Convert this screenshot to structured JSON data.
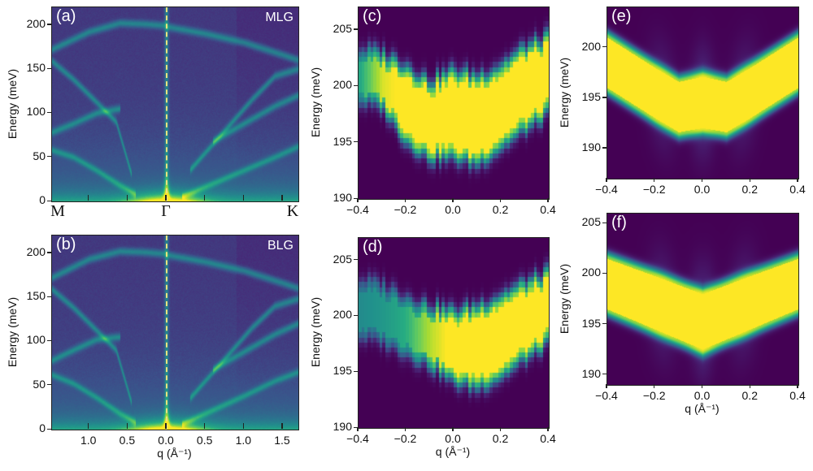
{
  "colors": {
    "colormap": "viridis",
    "dashed_line": "#e9e27f",
    "label_text": "#ffffff"
  },
  "chart_data": [
    {
      "id": "a",
      "type": "heatmap",
      "panel_label": "(a)",
      "sample": "MLG",
      "ylabel": "Energy (meV)",
      "xlabel": "",
      "xlim": [
        -1.48,
        1.7
      ],
      "ylim": [
        0,
        220
      ],
      "yticks": [
        0,
        50,
        100,
        150,
        200
      ],
      "xticks": [
        -1.0,
        -0.5,
        0.0,
        0.5,
        1.0,
        1.5
      ],
      "xtick_labels": [],
      "xsym_ticks": [
        -1.48,
        0.0,
        1.7
      ],
      "xsym_labels": [
        "M",
        "Γ",
        "K"
      ],
      "dashed_line_q": 0.0,
      "branches": [
        {
          "q": [
            -1.48,
            -1.0,
            -0.6,
            -0.3,
            0.0
          ],
          "E": [
            172,
            192,
            202,
            201,
            199
          ]
        },
        {
          "q": [
            0.0,
            0.5,
            1.0,
            1.5,
            1.7
          ],
          "E": [
            198,
            190,
            180,
            166,
            160
          ]
        },
        {
          "q": [
            -1.48,
            -1.2,
            -0.9,
            -0.65,
            -0.45
          ],
          "E": [
            159,
            138,
            112,
            90,
            30
          ]
        },
        {
          "q": [
            -1.48,
            -1.2,
            -0.9,
            -0.6
          ],
          "E": [
            78,
            88,
            100,
            105
          ]
        },
        {
          "q": [
            -1.48,
            -1.2,
            -0.9,
            -0.6,
            -0.4
          ],
          "E": [
            58,
            50,
            35,
            18,
            8
          ]
        },
        {
          "q": [
            0.2,
            0.6,
            1.0,
            1.4,
            1.7
          ],
          "E": [
            5,
            20,
            35,
            50,
            62
          ]
        },
        {
          "q": [
            0.3,
            0.7,
            1.1,
            1.4,
            1.7
          ],
          "E": [
            35,
            75,
            115,
            142,
            150
          ]
        },
        {
          "q": [
            0.6,
            1.0,
            1.4,
            1.7
          ],
          "E": [
            68,
            88,
            108,
            120
          ]
        }
      ]
    },
    {
      "id": "b",
      "type": "heatmap",
      "panel_label": "(b)",
      "sample": "BLG",
      "ylabel": "Energy (meV)",
      "xlabel": "q (Å⁻¹)",
      "xlim": [
        -1.48,
        1.7
      ],
      "ylim": [
        0,
        220
      ],
      "yticks": [
        0,
        50,
        100,
        150,
        200
      ],
      "xticks": [
        -1.0,
        -0.5,
        0.0,
        0.5,
        1.0,
        1.5
      ],
      "xtick_labels": [
        "1.0",
        "0.5",
        "0.0",
        "0.5",
        "1.0",
        "1.5"
      ],
      "dashed_line_q": 0.0,
      "branches": [
        {
          "q": [
            -1.48,
            -1.0,
            -0.6,
            -0.3,
            0.0
          ],
          "E": [
            172,
            193,
            202,
            201,
            199
          ]
        },
        {
          "q": [
            0.0,
            0.5,
            1.0,
            1.5,
            1.7
          ],
          "E": [
            198,
            190,
            180,
            166,
            160
          ]
        },
        {
          "q": [
            -1.48,
            -1.2,
            -0.9,
            -0.65,
            -0.45
          ],
          "E": [
            159,
            138,
            112,
            90,
            30
          ]
        },
        {
          "q": [
            -1.48,
            -1.2,
            -0.9,
            -0.6
          ],
          "E": [
            78,
            90,
            102,
            105
          ]
        },
        {
          "q": [
            -1.48,
            -1.2,
            -0.9,
            -0.6,
            -0.4
          ],
          "E": [
            62,
            52,
            36,
            18,
            8
          ]
        },
        {
          "q": [
            0.2,
            0.6,
            1.0,
            1.4,
            1.7
          ],
          "E": [
            6,
            22,
            38,
            55,
            65
          ]
        },
        {
          "q": [
            0.3,
            0.7,
            1.1,
            1.4,
            1.7
          ],
          "E": [
            35,
            75,
            115,
            140,
            148
          ]
        },
        {
          "q": [
            0.6,
            1.0,
            1.4,
            1.7
          ],
          "E": [
            68,
            88,
            108,
            120
          ]
        }
      ]
    },
    {
      "id": "c",
      "type": "heatmap",
      "panel_label": "(c)",
      "ylabel": "Energy (meV)",
      "xlabel": "",
      "xlim": [
        -0.4,
        0.4
      ],
      "ylim": [
        190,
        207
      ],
      "yticks": [
        190,
        195,
        200,
        205
      ],
      "xticks": [
        -0.4,
        -0.2,
        0.0,
        0.2,
        0.4
      ],
      "xtick_labels": [
        "−0.4",
        "−0.2",
        "0.0",
        "0.2",
        "0.4"
      ],
      "pixelated": true,
      "band": {
        "q": [
          -0.4,
          -0.3,
          -0.2,
          -0.1,
          0.0,
          0.1,
          0.2,
          0.3,
          0.4
        ],
        "upper": [
          202.5,
          202,
          201,
          199.5,
          200.5,
          200,
          201,
          202.5,
          203.5
        ],
        "lower": [
          199.5,
          199,
          196,
          194.5,
          194.5,
          194,
          195.5,
          197,
          198.5
        ],
        "peak": [
          0.55,
          0.9,
          1,
          1,
          1,
          1,
          1,
          1,
          1
        ]
      }
    },
    {
      "id": "d",
      "type": "heatmap",
      "panel_label": "(d)",
      "ylabel": "Energy (meV)",
      "xlabel": "q (Å⁻¹)",
      "xlim": [
        -0.4,
        0.4
      ],
      "ylim": [
        190,
        207
      ],
      "yticks": [
        190,
        195,
        200,
        205
      ],
      "xticks": [
        -0.4,
        -0.2,
        0.0,
        0.2,
        0.4
      ],
      "xtick_labels": [
        "−0.4",
        "−0.2",
        "0.0",
        "0.2",
        "0.4"
      ],
      "pixelated": true,
      "band": {
        "q": [
          -0.4,
          -0.3,
          -0.2,
          -0.1,
          0.0,
          0.1,
          0.2,
          0.3,
          0.4
        ],
        "upper": [
          202.5,
          202,
          201,
          200,
          199.5,
          200,
          201,
          202,
          203
        ],
        "lower": [
          199,
          198.5,
          197.5,
          196.5,
          195,
          194.5,
          195.5,
          197,
          198.5
        ],
        "peak": [
          0.45,
          0.5,
          0.6,
          0.85,
          1,
          1,
          1,
          1,
          1
        ]
      }
    },
    {
      "id": "e",
      "type": "heatmap",
      "panel_label": "(e)",
      "ylabel": "Energy (meV)",
      "xlabel": "",
      "xlim": [
        -0.4,
        0.4
      ],
      "ylim": [
        187,
        204
      ],
      "yticks": [
        190,
        195,
        200
      ],
      "xticks": [
        -0.4,
        -0.2,
        0.0,
        0.2,
        0.4
      ],
      "xtick_labels": [
        "−0.4",
        "−0.2",
        "0.0",
        "0.2",
        "0.4"
      ],
      "pixelated": false,
      "band": {
        "q": [
          -0.4,
          -0.3,
          -0.2,
          -0.1,
          0.0,
          0.1,
          0.2,
          0.3,
          0.4
        ],
        "upper": [
          201,
          199.5,
          198,
          196.6,
          197.1,
          196.6,
          198,
          199.5,
          201
        ],
        "lower": [
          196,
          194.5,
          193,
          191.6,
          192,
          191.6,
          193,
          194.5,
          196
        ],
        "peak": [
          1,
          1,
          1,
          1,
          1,
          1,
          1,
          1,
          1
        ]
      }
    },
    {
      "id": "f",
      "type": "heatmap",
      "panel_label": "(f)",
      "ylabel": "Energy (meV)",
      "xlabel": "q (Å⁻¹)",
      "xlim": [
        -0.4,
        0.4
      ],
      "ylim": [
        189,
        206
      ],
      "yticks": [
        190,
        195,
        200,
        205
      ],
      "xticks": [
        -0.4,
        -0.2,
        0.0,
        0.2,
        0.4
      ],
      "xtick_labels": [
        "−0.4",
        "−0.2",
        "0.0",
        "0.2",
        "0.4"
      ],
      "pixelated": false,
      "band": {
        "q": [
          -0.4,
          -0.2,
          0.0,
          0.2,
          0.4
        ],
        "upper": [
          201.5,
          199.8,
          198,
          199.8,
          201.5
        ],
        "lower": [
          196.5,
          194.5,
          192.5,
          194.5,
          196.5
        ],
        "peak": [
          1,
          1,
          1,
          1,
          1
        ]
      }
    }
  ]
}
